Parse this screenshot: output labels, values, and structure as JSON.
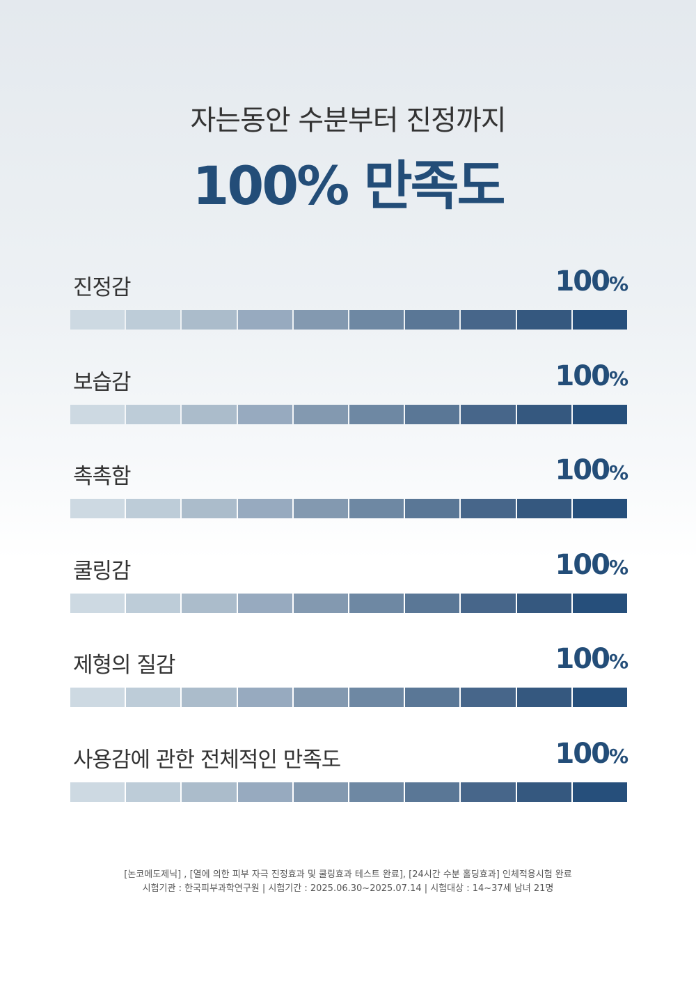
{
  "header": {
    "subtitle": "자는동안 수분부터 진정까지",
    "title": "100% 만족도"
  },
  "items": [
    {
      "label": "진정감",
      "value": 100,
      "unit": "%"
    },
    {
      "label": "보습감",
      "value": 100,
      "unit": "%"
    },
    {
      "label": "촉촉함",
      "value": 100,
      "unit": "%"
    },
    {
      "label": "쿨링감",
      "value": 100,
      "unit": "%"
    },
    {
      "label": "제형의 질감",
      "value": 100,
      "unit": "%"
    },
    {
      "label": "사용감에 관한 전체적인 만족도",
      "value": 100,
      "unit": "%"
    }
  ],
  "footnote": [
    "[논코메도제닉] , [열에 의한 피부 자극 진정효과 및 쿨링효과 테스트 완료], [24시간 수분 홀딩효과] 인체적용시험 완료",
    "시험기관 : 한국피부과학연구원 | 시험기간 : 2025.06.30~2025.07.14 | 시험대상 : 14~37세 남녀 21명"
  ]
}
